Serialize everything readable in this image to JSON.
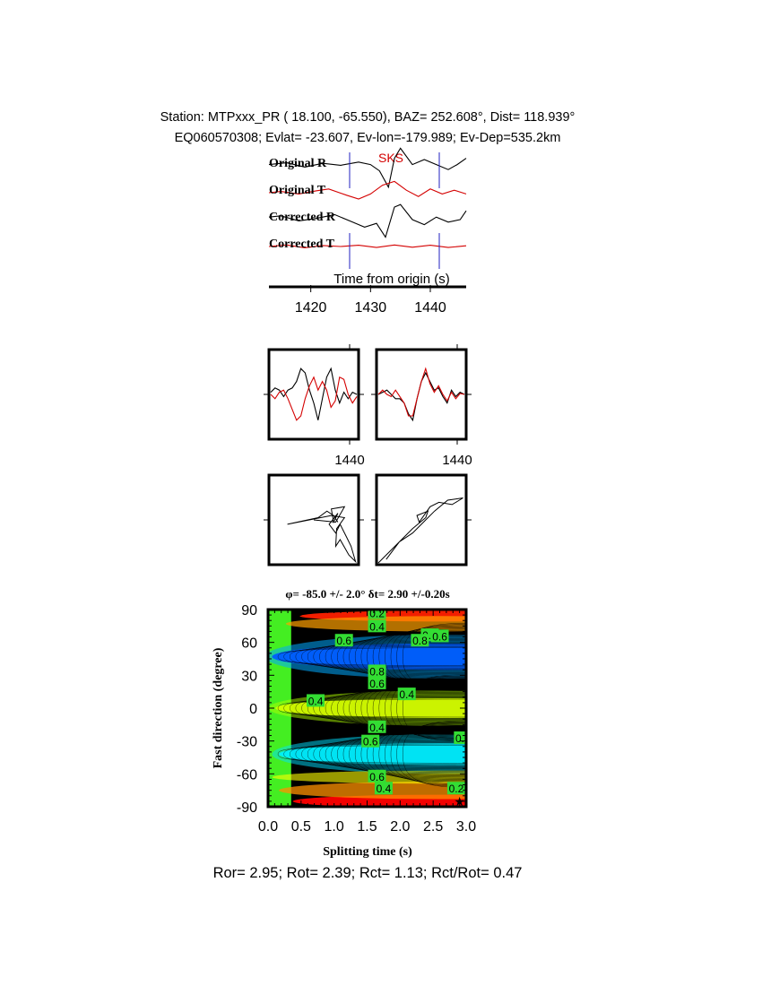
{
  "header": {
    "station_line": "Station: MTPxxx_PR (  18.100,  -65.550), BAZ=  252.608°, Dist=  118.939°",
    "event_line": "EQ060570308; Evlat= -23.607, Ev-lon=-179.989; Ev-Dep=535.2km"
  },
  "footer": {
    "ratios_line": "Ror= 2.95; Rot= 2.39; Rct= 1.13; Rct/Rot= 0.47"
  },
  "colors": {
    "radial_trace": "#000000",
    "transverse_trace": "#d40000",
    "window_marker": "#2020c0",
    "phase_label": "#d40000"
  },
  "chart_data": [
    {
      "type": "line",
      "name": "waveforms",
      "phase_label": "SKS",
      "xlabel": "Time from origin (s)",
      "xlim": [
        1413,
        1446
      ],
      "x_ticks": [
        1420,
        1430,
        1440
      ],
      "window": [
        1426.5,
        1441.5
      ],
      "traces": [
        {
          "label": "Original R",
          "component": "R",
          "x": [
            1413,
            1416,
            1419,
            1422,
            1425,
            1428,
            1430,
            1431.5,
            1433,
            1434,
            1435,
            1437,
            1439,
            1441,
            1443,
            1444.5,
            1446
          ],
          "y": [
            0.05,
            0.12,
            -0.05,
            0.1,
            0.02,
            0.15,
            0.05,
            -0.2,
            -0.85,
            0.3,
            0.7,
            0.05,
            0.25,
            0.05,
            -0.15,
            0.05,
            0.3
          ]
        },
        {
          "label": "Original T",
          "component": "T",
          "x": [
            1413,
            1415,
            1418,
            1421,
            1423,
            1426,
            1428,
            1430,
            1432,
            1434,
            1436,
            1438,
            1440,
            1442,
            1444,
            1446
          ],
          "y": [
            0.0,
            0.05,
            -0.05,
            0.08,
            0.15,
            -0.1,
            -0.25,
            -0.05,
            0.3,
            0.45,
            0.1,
            -0.15,
            0.15,
            -0.05,
            0.1,
            -0.05
          ]
        },
        {
          "label": "Corrected R",
          "component": "R",
          "x": [
            1413,
            1415,
            1418,
            1421,
            1424,
            1427,
            1429,
            1431,
            1432.5,
            1434,
            1435,
            1437,
            1439,
            1441,
            1443,
            1445,
            1446
          ],
          "y": [
            0.1,
            0.15,
            -0.05,
            0.05,
            0.2,
            -0.1,
            -0.3,
            -0.15,
            -0.7,
            0.5,
            0.6,
            0.0,
            -0.2,
            0.1,
            -0.1,
            0.0,
            0.35
          ]
        },
        {
          "label": "Corrected T",
          "component": "T",
          "x": [
            1413,
            1416,
            1419,
            1422,
            1425,
            1428,
            1431,
            1434,
            1437,
            1440,
            1443,
            1446
          ],
          "y": [
            0.0,
            0.06,
            -0.05,
            0.04,
            0.0,
            0.05,
            -0.04,
            0.06,
            -0.03,
            0.05,
            -0.04,
            0.03
          ]
        }
      ]
    },
    {
      "type": "line",
      "name": "waveform-overlay",
      "panels": [
        {
          "id": "original",
          "x_tick": "1440",
          "t": [
            0,
            0.05,
            0.1,
            0.15,
            0.2,
            0.25,
            0.3,
            0.35,
            0.4,
            0.45,
            0.5,
            0.55,
            0.6,
            0.65,
            0.7,
            0.75,
            0.8,
            0.85,
            0.9,
            0.95,
            1.0
          ],
          "black": [
            0.05,
            0.15,
            0.1,
            -0.05,
            0.1,
            0.15,
            0.3,
            0.6,
            0.5,
            0.1,
            -0.2,
            -0.6,
            -0.1,
            0.4,
            0.6,
            0.1,
            -0.2,
            0.05,
            -0.1,
            0.05,
            0.0
          ],
          "red": [
            0.0,
            -0.1,
            0.05,
            0.1,
            -0.1,
            -0.35,
            -0.6,
            -0.5,
            -0.1,
            0.2,
            0.4,
            0.1,
            0.3,
            0.1,
            -0.3,
            -0.15,
            0.4,
            0.35,
            0.0,
            -0.2,
            -0.05
          ]
        },
        {
          "id": "corrected",
          "x_tick": "1440",
          "t": [
            0,
            0.05,
            0.1,
            0.15,
            0.2,
            0.25,
            0.3,
            0.35,
            0.4,
            0.45,
            0.5,
            0.55,
            0.6,
            0.65,
            0.7,
            0.75,
            0.8,
            0.85,
            0.9,
            0.95,
            1.0
          ],
          "black": [
            0.0,
            0.05,
            0.1,
            0.0,
            -0.1,
            -0.1,
            -0.2,
            -0.45,
            -0.6,
            -0.1,
            0.3,
            0.5,
            0.3,
            0.1,
            0.15,
            -0.05,
            -0.2,
            0.1,
            -0.05,
            0.05,
            0.0
          ],
          "red": [
            0.0,
            0.1,
            0.0,
            -0.05,
            0.1,
            -0.05,
            -0.2,
            -0.5,
            -0.5,
            -0.1,
            0.3,
            0.6,
            0.25,
            0.05,
            0.2,
            0.0,
            -0.15,
            0.05,
            -0.1,
            0.02,
            0.0
          ]
        }
      ]
    },
    {
      "type": "scatter",
      "name": "particle-motion",
      "panels": [
        {
          "id": "original",
          "x": [
            0.0,
            0.5,
            0.7,
            0.4,
            0.45,
            0.55,
            0.35,
            0.5,
            0.6,
            0.75,
            0.85,
            0.95,
            0.8,
            0.6,
            0.5,
            0.52,
            0.7,
            0.4,
            -0.6,
            0.1,
            0.3,
            0.45,
            0.55
          ],
          "y": [
            0.0,
            -0.05,
            0.3,
            0.25,
            -0.05,
            0.15,
            -0.1,
            -0.3,
            -0.1,
            -0.4,
            -0.6,
            -0.95,
            -0.8,
            -0.45,
            -0.6,
            -0.2,
            0.05,
            0.1,
            -0.1,
            0.05,
            0.2,
            0.1,
            -0.05
          ]
        },
        {
          "id": "corrected",
          "x": [
            -0.98,
            -0.6,
            -0.2,
            0.1,
            0.15,
            -0.1,
            -0.05,
            0.2,
            0.4,
            0.7,
            0.95,
            0.6,
            0.3,
            0.1,
            -0.2,
            -0.5,
            -0.8
          ],
          "y": [
            -0.98,
            -0.6,
            -0.2,
            0.05,
            0.2,
            0.1,
            -0.05,
            0.3,
            0.4,
            0.35,
            0.5,
            0.45,
            0.2,
            0.0,
            -0.3,
            -0.5,
            -0.9
          ]
        }
      ]
    },
    {
      "type": "heatmap",
      "name": "splitting-grid",
      "title": "φ= -85.0 +/- 2.0° δt= 2.90 +/-0.20s",
      "xlabel": "Splitting time (s)",
      "ylabel": "Fast direction (degree)",
      "xlim": [
        0.0,
        3.0
      ],
      "ylim": [
        -90,
        90
      ],
      "x_ticks": [
        "0.0",
        "0.5",
        "1.0",
        "1.5",
        "2.0",
        "2.5",
        "3.0"
      ],
      "y_ticks": [
        "90",
        "60",
        "30",
        "0",
        "-30",
        "-60",
        "-90"
      ],
      "best_fit": {
        "dt": 2.9,
        "phi": -85.0
      },
      "contour_labels": [
        {
          "text": "0.2",
          "dt": 1.65,
          "phi": 87
        },
        {
          "text": "0.4",
          "dt": 1.65,
          "phi": 75
        },
        {
          "text": "0.6",
          "dt": 1.15,
          "phi": 62
        },
        {
          "text": "0.8",
          "dt": 2.45,
          "phi": 67
        },
        {
          "text": "0.6",
          "dt": 2.6,
          "phi": 66
        },
        {
          "text": "0.8",
          "dt": 2.3,
          "phi": 62
        },
        {
          "text": "0.8",
          "dt": 1.65,
          "phi": 34
        },
        {
          "text": "0.6",
          "dt": 1.65,
          "phi": 23
        },
        {
          "text": "0.4",
          "dt": 2.1,
          "phi": 13
        },
        {
          "text": "0.4",
          "dt": 0.72,
          "phi": 7
        },
        {
          "text": "0.4",
          "dt": 1.65,
          "phi": -17
        },
        {
          "text": "0.6",
          "dt": 1.55,
          "phi": -30
        },
        {
          "text": "0.6",
          "dt": 2.95,
          "phi": -27
        },
        {
          "text": "0.6",
          "dt": 1.65,
          "phi": -62
        },
        {
          "text": "0.4",
          "dt": 1.75,
          "phi": -73
        },
        {
          "text": "0.2",
          "dt": 2.85,
          "phi": -73
        }
      ],
      "colorscale": [
        "#00ff00",
        "#7fff00",
        "#ffff00",
        "#ff8000",
        "#ff0000"
      ]
    }
  ]
}
